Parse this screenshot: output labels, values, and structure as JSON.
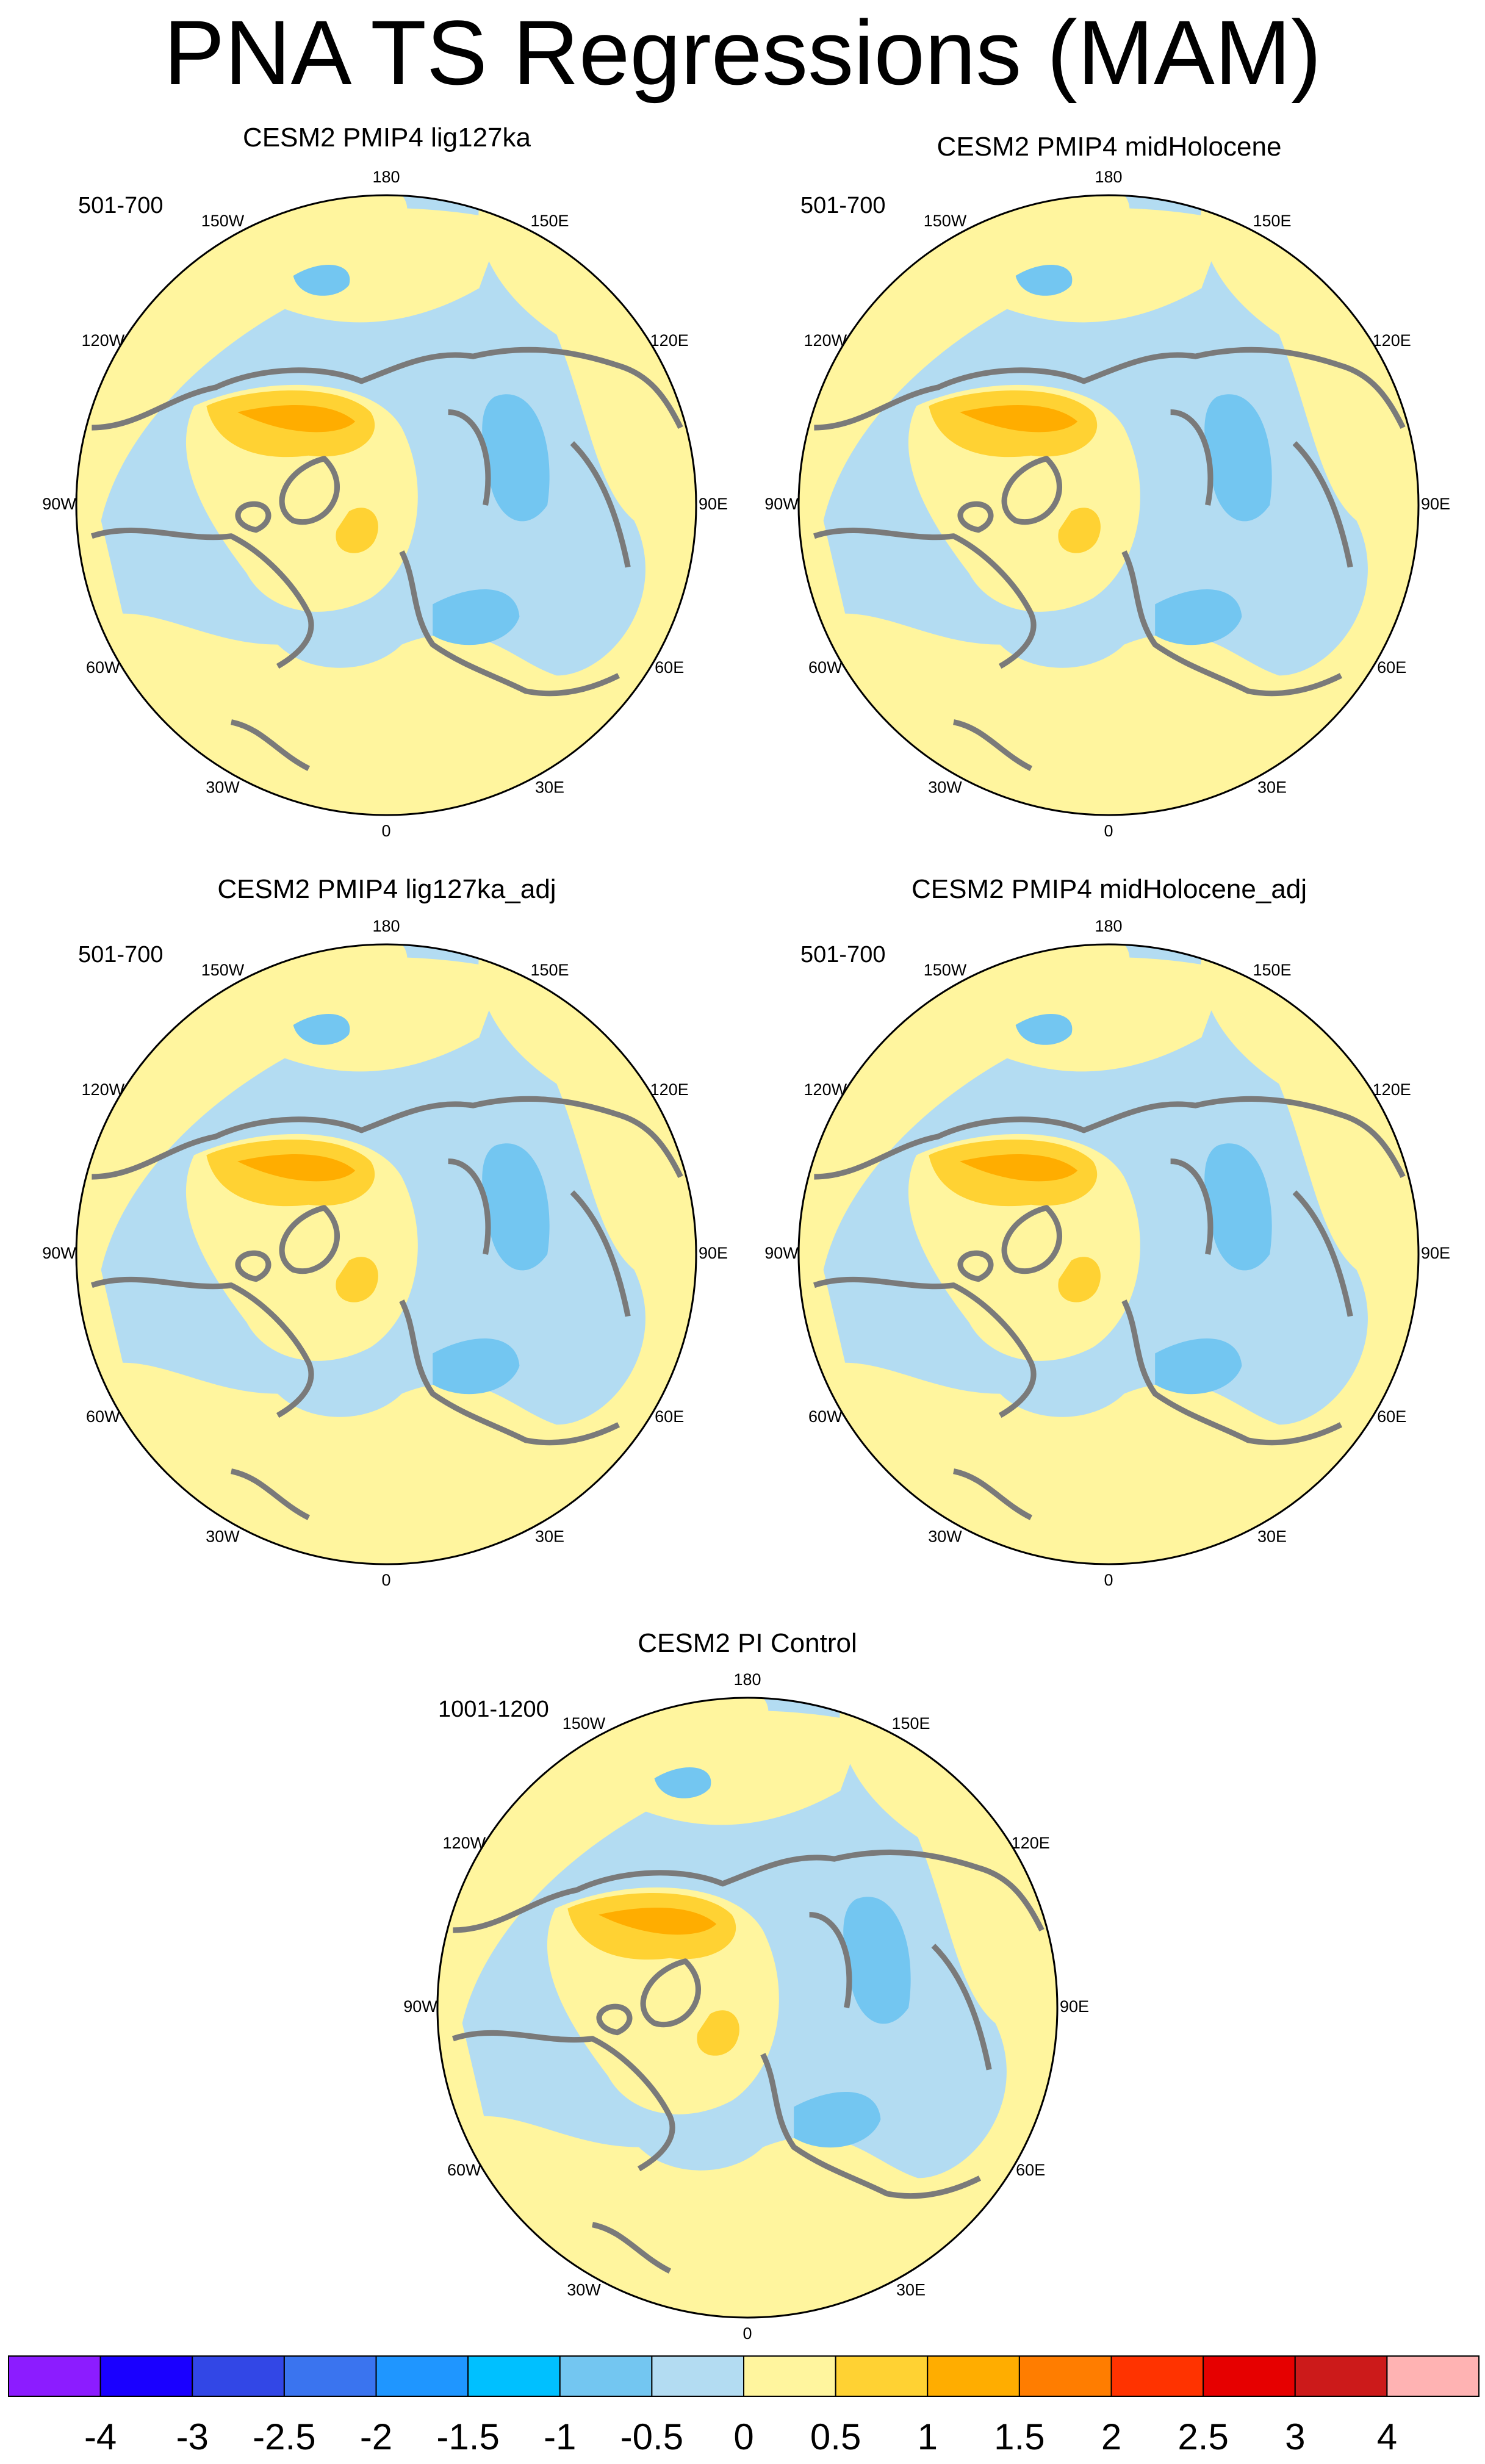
{
  "title": "PNA TS Regressions (MAM)",
  "panels": [
    {
      "title": "CESM2 PMIP4 lig127ka",
      "period": "501-700"
    },
    {
      "title": "CESM2 PMIP4 midHolocene",
      "period": "501-700"
    },
    {
      "title": "CESM2 PMIP4 lig127ka_adj",
      "period": "501-700"
    },
    {
      "title": "CESM2 PMIP4 midHolocene_adj",
      "period": "501-700"
    },
    {
      "title": "CESM2 PI Control",
      "period": "1001-1200"
    }
  ],
  "longitude_labels": [
    "180",
    "150E",
    "120E",
    "90E",
    "60E",
    "30E",
    "0",
    "30W",
    "60W",
    "90W",
    "120W",
    "150W"
  ],
  "colorbar": {
    "ticks": [
      "-4",
      "-3",
      "-2.5",
      "-2",
      "-1.5",
      "-1",
      "-0.5",
      "0",
      "0.5",
      "1",
      "1.5",
      "2",
      "2.5",
      "3",
      "4"
    ],
    "colors": [
      "#8c1cff",
      "#1a00ff",
      "#3247e6",
      "#3a74ef",
      "#1f96ff",
      "#00c0ff",
      "#73c6f1",
      "#b3dcf2",
      "#fff59e",
      "#ffd233",
      "#ffad00",
      "#ff7d00",
      "#ff3300",
      "#e60000",
      "#cc1a1a",
      "#ffb3b3"
    ]
  },
  "colors": {
    "land_outline": "#7a7a7a",
    "map_border": "#000000"
  }
}
